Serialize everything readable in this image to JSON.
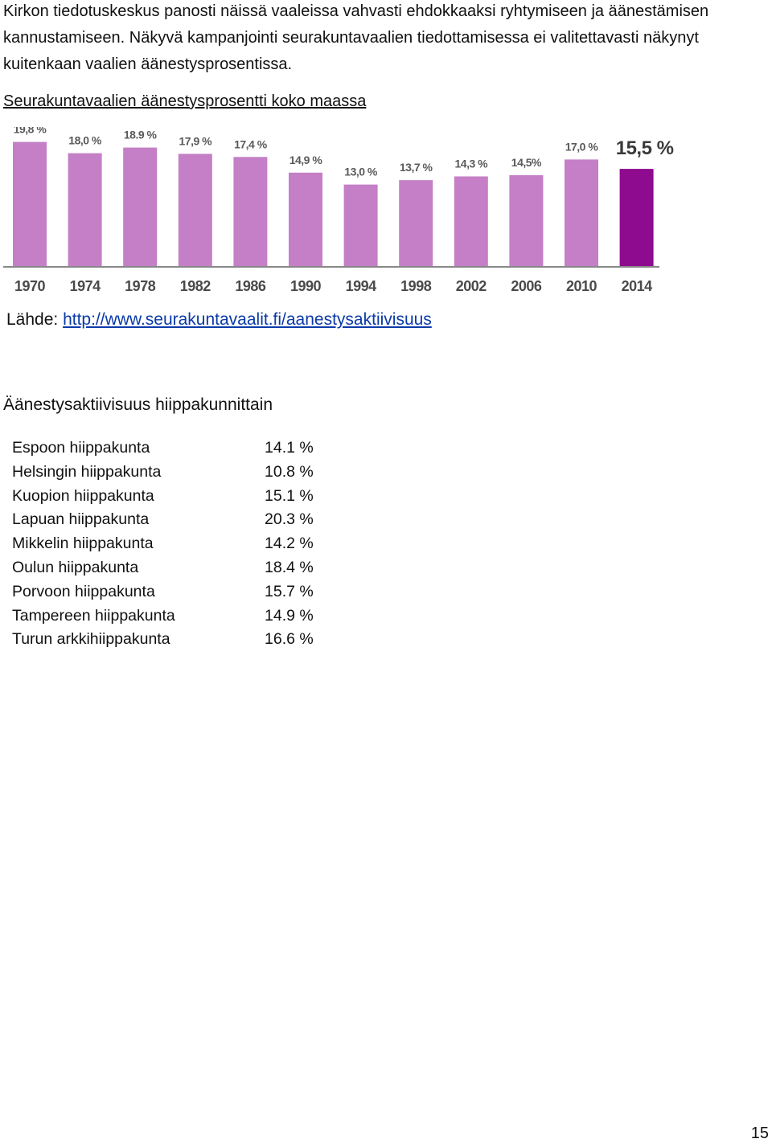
{
  "intro": {
    "lines": [
      "Kirkon tiedotuskeskus panosti näissä vaaleissa vahvasti ehdokkaaksi ryhtymiseen ja äänestämisen",
      "kannustamiseen. Näkyvä kampanjointi seurakuntavaalien tiedottamisessa ei valitettavasti näkynyt",
      "kuitenkaan vaalien äänestysprosentissa."
    ]
  },
  "chart_title": "Seurakuntavaalien äänestysprosentti koko maassa",
  "chart_data": {
    "type": "bar",
    "categories": [
      "1970",
      "1974",
      "1978",
      "1982",
      "1986",
      "1990",
      "1994",
      "1998",
      "2002",
      "2006",
      "2010",
      "2014"
    ],
    "values": [
      19.8,
      18.0,
      18.9,
      17.9,
      17.4,
      14.9,
      13.0,
      13.7,
      14.3,
      14.5,
      17.0,
      15.5
    ],
    "data_labels": [
      "19,8 %",
      "18,0 %",
      "18.9 %",
      "17,9 %",
      "17,4 %",
      "14,9 %",
      "13,0 %",
      "13,7 %",
      "14,3 %",
      "14,5%",
      "17,0 %",
      "15,5 %"
    ],
    "highlight_index": 11,
    "colors": {
      "bar": "#c47fc6",
      "highlight": "#8e0a8e",
      "axis": "#888888"
    },
    "ylim": [
      0,
      20
    ],
    "grid": false,
    "legend": "none"
  },
  "source": {
    "prefix": "Lähde: ",
    "link_text": "http://www.seurakuntavaalit.fi/aanestysaktiivisuus"
  },
  "districts": {
    "title": "Äänestysaktiivisuus hiippakunnittain",
    "rows": [
      {
        "name": "Espoon hiippakunta",
        "value": "14.1 %"
      },
      {
        "name": "Helsingin hiippakunta",
        "value": "10.8 %"
      },
      {
        "name": "Kuopion hiippakunta",
        "value": "15.1 %"
      },
      {
        "name": "Lapuan hiippakunta",
        "value": "20.3 %"
      },
      {
        "name": "Mikkelin hiippakunta",
        "value": "14.2 %"
      },
      {
        "name": "Oulun hiippakunta",
        "value": "18.4 %"
      },
      {
        "name": "Porvoon hiippakunta",
        "value": "15.7 %"
      },
      {
        "name": "Tampereen hiippakunta",
        "value": "14.9 %"
      },
      {
        "name": "Turun arkkihiippakunta",
        "value": "16.6 %"
      }
    ]
  },
  "page_number": "15"
}
